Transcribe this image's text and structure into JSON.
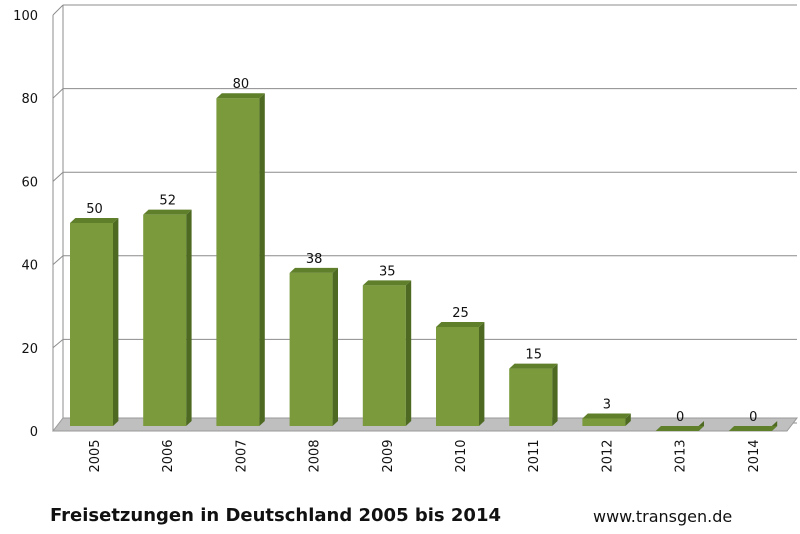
{
  "chart_data": {
    "type": "bar",
    "categories": [
      "2005",
      "2006",
      "2007",
      "2008",
      "2009",
      "2010",
      "2011",
      "2012",
      "2013",
      "2014"
    ],
    "values": [
      50,
      52,
      80,
      38,
      35,
      25,
      15,
      3,
      0,
      0
    ],
    "title": "Freisetzungen in Deutschland 2005 bis 2014",
    "xlabel": "",
    "ylabel": "",
    "ylim": [
      0,
      100
    ],
    "yticks": [
      0,
      20,
      40,
      60,
      80,
      100
    ],
    "grid": true,
    "legend": "none",
    "style": "3d-column",
    "colors": {
      "bar_front": "#7a9a3c",
      "bar_side": "#4e6a22",
      "bar_top": "#5f7f2a",
      "floor": "#bfbfbf",
      "grid": "#8c8c8c"
    }
  },
  "caption": "Freisetzungen in Deutschland 2005 bis 2014",
  "source": "www.transgen.de"
}
